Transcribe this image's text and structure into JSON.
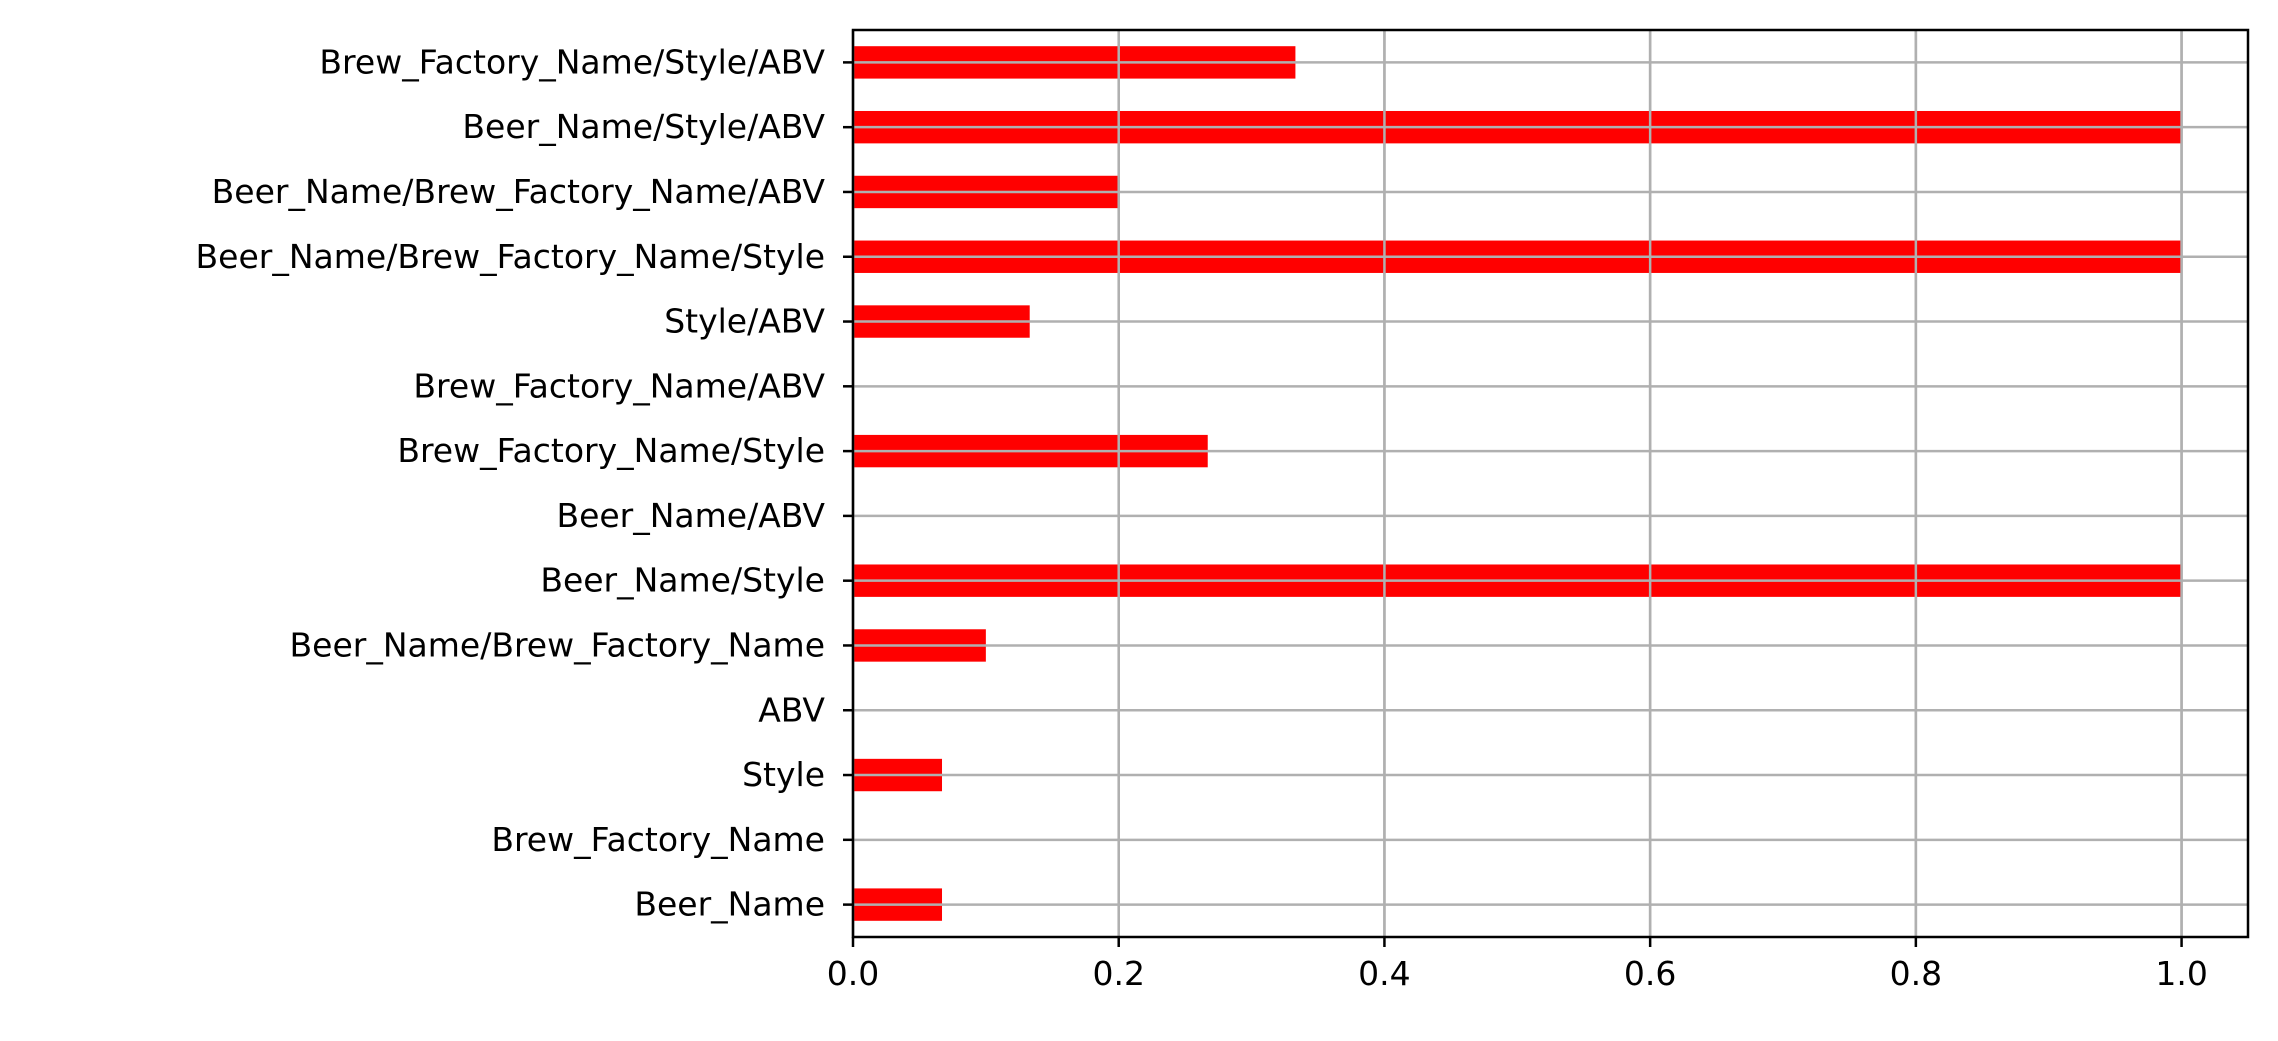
{
  "chart_data": {
    "type": "bar",
    "orientation": "horizontal",
    "categories": [
      "Brew_Factory_Name/Style/ABV",
      "Beer_Name/Style/ABV",
      "Beer_Name/Brew_Factory_Name/ABV",
      "Beer_Name/Brew_Factory_Name/Style",
      "Style/ABV",
      "Brew_Factory_Name/ABV",
      "Brew_Factory_Name/Style",
      "Beer_Name/ABV",
      "Beer_Name/Style",
      "Beer_Name/Brew_Factory_Name",
      "ABV",
      "Style",
      "Brew_Factory_Name",
      "Beer_Name"
    ],
    "values": [
      0.333,
      1.0,
      0.2,
      1.0,
      0.133,
      0.0,
      0.267,
      0.0,
      1.0,
      0.1,
      0.0,
      0.067,
      0.0,
      0.067
    ],
    "title": "",
    "xlabel": "",
    "ylabel": "",
    "xlim": [
      0,
      1.05
    ],
    "xticks": [
      0.0,
      0.2,
      0.4,
      0.6,
      0.8,
      1.0
    ],
    "xtick_labels": [
      "0.0",
      "0.2",
      "0.4",
      "0.6",
      "0.8",
      "1.0"
    ],
    "grid": true,
    "legend": "none",
    "bar_color": "#ff0000",
    "grid_color": "#b0b0b0"
  }
}
